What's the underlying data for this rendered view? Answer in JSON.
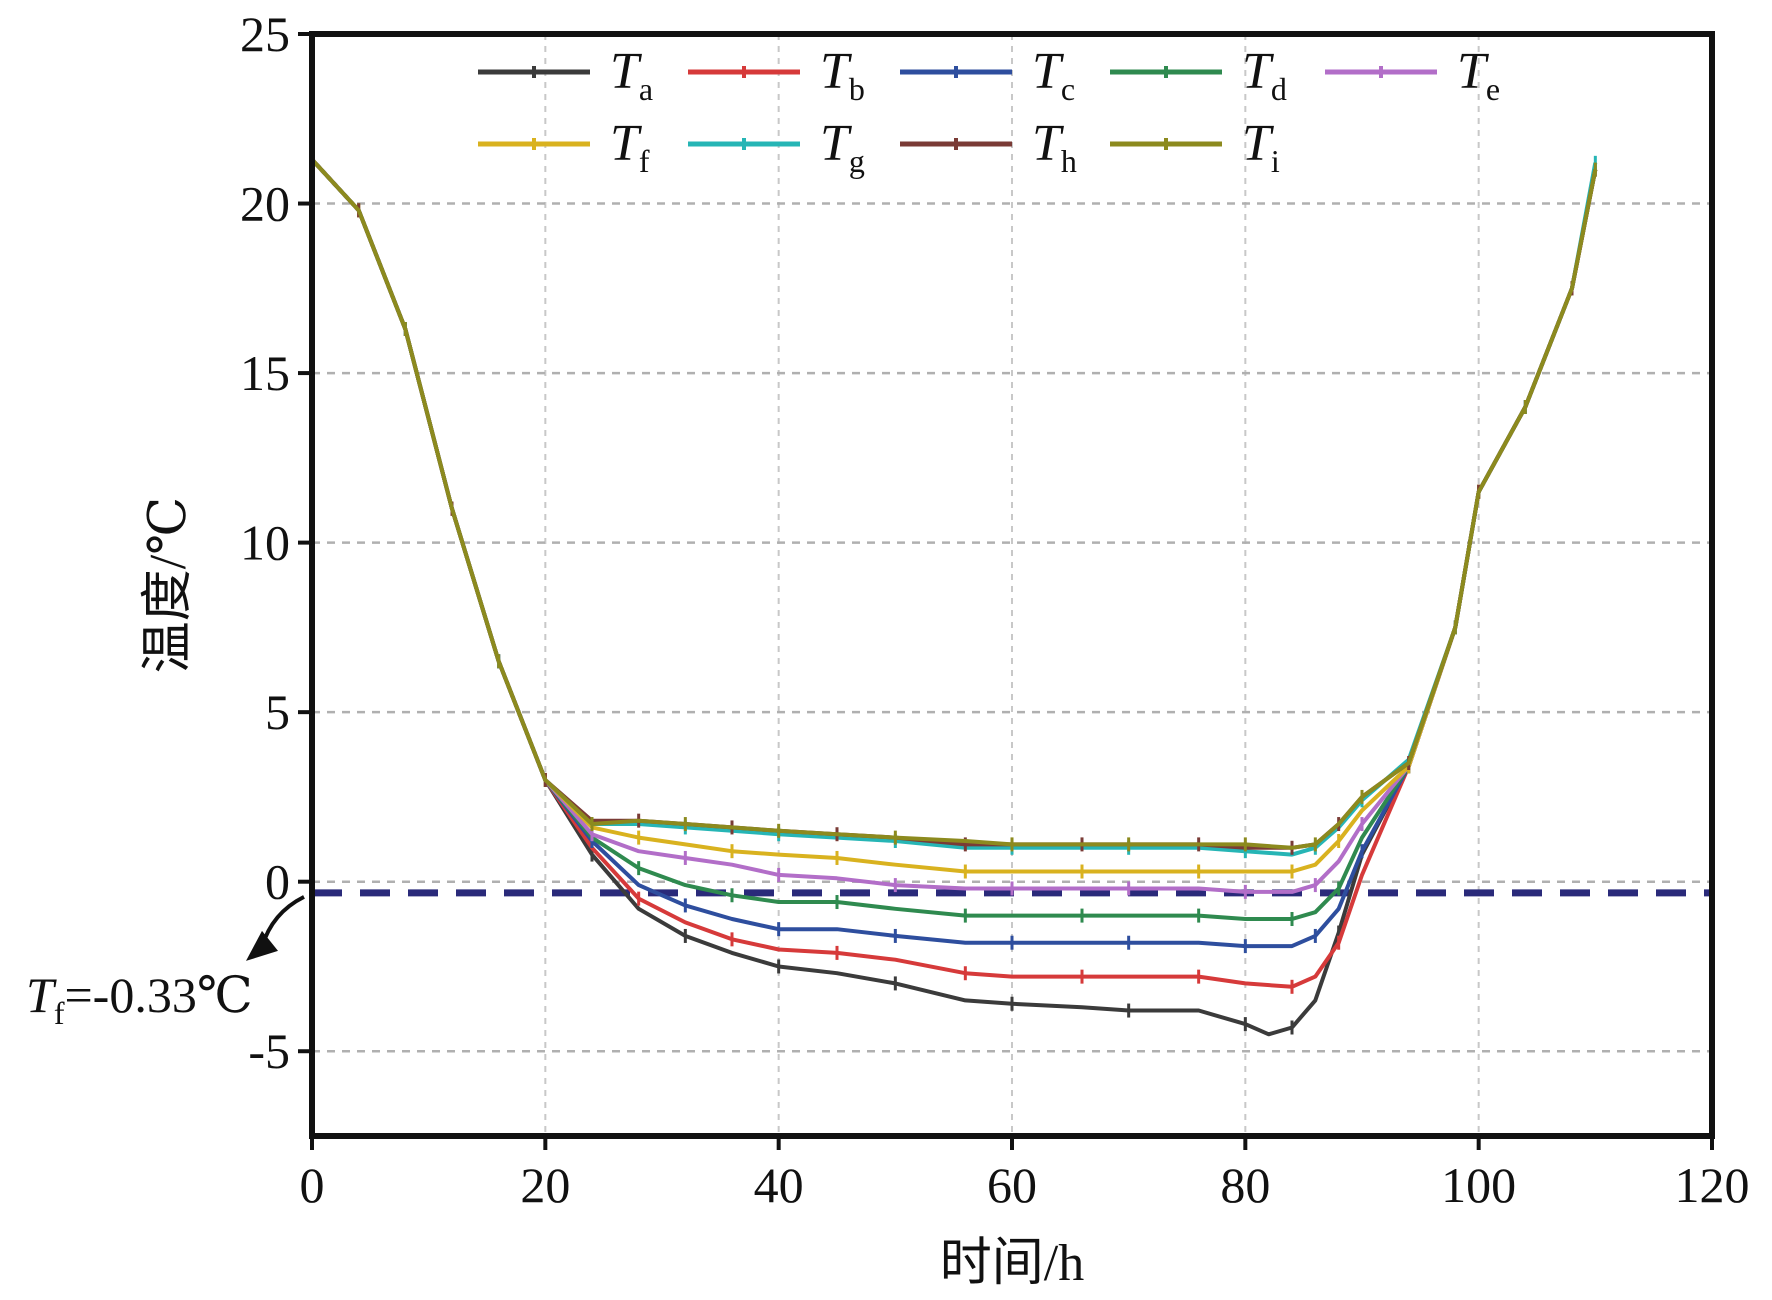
{
  "chart_data": {
    "type": "line",
    "xlabel": "时间/h",
    "ylabel": "温度/℃",
    "xlim": [
      0,
      120
    ],
    "ylim": [
      -7.5,
      25
    ],
    "xticks": [
      0,
      20,
      40,
      60,
      80,
      100,
      120
    ],
    "yticks": [
      -5,
      0,
      5,
      10,
      15,
      20,
      25
    ],
    "grid": true,
    "legend_position": "top",
    "annotation": {
      "text_main": "T",
      "text_sub": "f",
      "text_rest": "=-0.33℃",
      "value": -0.33
    },
    "series": [
      {
        "name": "T",
        "sub": "a",
        "color": "#3b3b3b",
        "x": [
          0,
          4,
          8,
          12,
          16,
          20,
          24,
          28,
          32,
          36,
          40,
          45,
          50,
          56,
          60,
          66,
          70,
          76,
          80,
          82,
          84,
          86,
          88,
          90,
          94,
          98,
          100,
          104,
          108,
          110
        ],
        "y": [
          21.3,
          19.8,
          16.3,
          11.0,
          6.5,
          3.0,
          0.8,
          -0.8,
          -1.6,
          -2.1,
          -2.5,
          -2.7,
          -3.0,
          -3.5,
          -3.6,
          -3.7,
          -3.8,
          -3.8,
          -4.2,
          -4.5,
          -4.3,
          -3.5,
          -1.5,
          0.8,
          3.4,
          7.5,
          11.5,
          14.0,
          17.5,
          21.0
        ]
      },
      {
        "name": "T",
        "sub": "b",
        "color": "#d63a3a",
        "x": [
          0,
          4,
          8,
          12,
          16,
          20,
          24,
          28,
          32,
          36,
          40,
          45,
          50,
          56,
          60,
          66,
          70,
          76,
          80,
          84,
          86,
          88,
          90,
          94,
          98,
          100,
          104,
          108,
          110
        ],
        "y": [
          21.3,
          19.8,
          16.3,
          11.0,
          6.5,
          3.0,
          1.0,
          -0.5,
          -1.2,
          -1.7,
          -2.0,
          -2.1,
          -2.3,
          -2.7,
          -2.8,
          -2.8,
          -2.8,
          -2.8,
          -3.0,
          -3.1,
          -2.8,
          -1.8,
          0.2,
          3.4,
          7.5,
          11.5,
          14.0,
          17.5,
          21.0
        ]
      },
      {
        "name": "T",
        "sub": "c",
        "color": "#2e4e9e",
        "x": [
          0,
          4,
          8,
          12,
          16,
          20,
          24,
          28,
          32,
          36,
          40,
          45,
          50,
          56,
          60,
          66,
          70,
          76,
          80,
          84,
          86,
          88,
          90,
          94,
          98,
          100,
          104,
          108,
          110
        ],
        "y": [
          21.3,
          19.8,
          16.3,
          11.0,
          6.5,
          3.0,
          1.2,
          -0.1,
          -0.7,
          -1.1,
          -1.4,
          -1.4,
          -1.6,
          -1.8,
          -1.8,
          -1.8,
          -1.8,
          -1.8,
          -1.9,
          -1.9,
          -1.6,
          -0.8,
          0.9,
          3.4,
          7.5,
          11.5,
          14.0,
          17.5,
          21.0
        ]
      },
      {
        "name": "T",
        "sub": "d",
        "color": "#2f8a4f",
        "x": [
          0,
          4,
          8,
          12,
          16,
          20,
          24,
          28,
          32,
          36,
          40,
          45,
          50,
          56,
          60,
          66,
          70,
          76,
          80,
          84,
          86,
          88,
          90,
          94,
          98,
          100,
          104,
          108,
          110
        ],
        "y": [
          21.3,
          19.8,
          16.3,
          11.0,
          6.5,
          3.0,
          1.3,
          0.4,
          -0.1,
          -0.4,
          -0.6,
          -0.6,
          -0.8,
          -1.0,
          -1.0,
          -1.0,
          -1.0,
          -1.0,
          -1.1,
          -1.1,
          -0.9,
          -0.2,
          1.3,
          3.4,
          7.5,
          11.5,
          14.0,
          17.5,
          21.0
        ]
      },
      {
        "name": "T",
        "sub": "e",
        "color": "#b26ec8",
        "x": [
          0,
          4,
          8,
          12,
          16,
          20,
          24,
          28,
          32,
          36,
          40,
          45,
          50,
          56,
          60,
          66,
          70,
          76,
          80,
          84,
          86,
          88,
          90,
          94,
          98,
          100,
          104,
          108,
          110
        ],
        "y": [
          21.3,
          19.8,
          16.3,
          11.0,
          6.5,
          3.0,
          1.4,
          0.9,
          0.7,
          0.5,
          0.2,
          0.1,
          -0.1,
          -0.2,
          -0.2,
          -0.2,
          -0.2,
          -0.2,
          -0.3,
          -0.3,
          -0.1,
          0.6,
          1.7,
          3.4,
          7.5,
          11.5,
          14.0,
          17.5,
          21.0
        ]
      },
      {
        "name": "T",
        "sub": "f",
        "color": "#d9b21f",
        "x": [
          0,
          4,
          8,
          12,
          16,
          20,
          24,
          28,
          32,
          36,
          40,
          45,
          50,
          56,
          60,
          66,
          70,
          76,
          80,
          84,
          86,
          88,
          90,
          94,
          98,
          100,
          104,
          108,
          110
        ],
        "y": [
          21.3,
          19.8,
          16.3,
          11.0,
          6.5,
          3.0,
          1.6,
          1.3,
          1.1,
          0.9,
          0.8,
          0.7,
          0.5,
          0.3,
          0.3,
          0.3,
          0.3,
          0.3,
          0.3,
          0.3,
          0.5,
          1.2,
          2.1,
          3.4,
          7.5,
          11.5,
          14.0,
          17.5,
          21.0
        ]
      },
      {
        "name": "T",
        "sub": "g",
        "color": "#26b5b5",
        "x": [
          0,
          4,
          8,
          12,
          16,
          20,
          24,
          28,
          32,
          36,
          40,
          45,
          50,
          56,
          60,
          66,
          70,
          76,
          80,
          84,
          86,
          88,
          90,
          94,
          98,
          100,
          104,
          108,
          110
        ],
        "y": [
          21.3,
          19.8,
          16.3,
          11.0,
          6.5,
          3.0,
          1.7,
          1.7,
          1.6,
          1.5,
          1.4,
          1.3,
          1.2,
          1.0,
          1.0,
          1.0,
          1.0,
          1.0,
          0.9,
          0.8,
          1.0,
          1.6,
          2.4,
          3.6,
          7.5,
          11.5,
          14.0,
          17.5,
          21.2
        ]
      },
      {
        "name": "T",
        "sub": "h",
        "color": "#7a3b36",
        "x": [
          0,
          4,
          8,
          12,
          16,
          20,
          24,
          28,
          32,
          36,
          40,
          45,
          50,
          56,
          60,
          66,
          70,
          76,
          80,
          84,
          86,
          88,
          90,
          94,
          98,
          100,
          104,
          108,
          110
        ],
        "y": [
          21.3,
          19.8,
          16.3,
          11.0,
          6.5,
          3.0,
          1.8,
          1.8,
          1.7,
          1.6,
          1.5,
          1.4,
          1.3,
          1.1,
          1.1,
          1.1,
          1.1,
          1.1,
          1.0,
          1.0,
          1.1,
          1.7,
          2.5,
          3.5,
          7.5,
          11.5,
          14.0,
          17.5,
          21.0
        ]
      },
      {
        "name": "T",
        "sub": "i",
        "color": "#8c8a1e",
        "x": [
          0,
          4,
          8,
          12,
          16,
          20,
          24,
          28,
          32,
          36,
          40,
          45,
          50,
          56,
          60,
          66,
          70,
          76,
          80,
          84,
          86,
          88,
          90,
          94,
          98,
          100,
          104,
          108,
          110
        ],
        "y": [
          21.3,
          19.8,
          16.3,
          11.0,
          6.5,
          3.0,
          1.7,
          1.8,
          1.7,
          1.6,
          1.5,
          1.4,
          1.3,
          1.2,
          1.1,
          1.1,
          1.1,
          1.1,
          1.1,
          1.0,
          1.1,
          1.7,
          2.5,
          3.5,
          7.5,
          11.5,
          14.0,
          17.5,
          21.0
        ]
      }
    ]
  }
}
